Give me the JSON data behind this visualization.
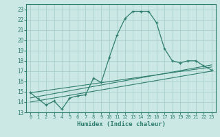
{
  "xlabel": "Humidex (Indice chaleur)",
  "ylabel": "",
  "xlim": [
    -0.5,
    23.5
  ],
  "ylim": [
    13,
    23.5
  ],
  "yticks": [
    13,
    14,
    15,
    16,
    17,
    18,
    19,
    20,
    21,
    22,
    23
  ],
  "xticks": [
    0,
    1,
    2,
    3,
    4,
    5,
    6,
    7,
    8,
    9,
    10,
    11,
    12,
    13,
    14,
    15,
    16,
    17,
    18,
    19,
    20,
    21,
    22,
    23
  ],
  "bg_color": "#cce8e4",
  "grid_color": "#aacfcb",
  "line_color": "#2e7d6e",
  "line1_x": [
    0,
    1,
    2,
    3,
    4,
    5,
    6,
    7,
    8,
    9,
    10,
    11,
    12,
    13,
    14,
    15,
    16,
    17,
    18,
    19,
    20,
    21,
    22,
    23
  ],
  "line1_y": [
    14.9,
    14.3,
    13.7,
    14.1,
    13.3,
    14.4,
    14.6,
    14.7,
    16.3,
    15.9,
    18.3,
    20.5,
    22.1,
    22.8,
    22.8,
    22.8,
    21.7,
    19.2,
    18.0,
    17.8,
    18.0,
    18.0,
    17.5,
    17.1
  ],
  "line2_x": [
    0,
    23
  ],
  "line2_y": [
    14.9,
    17.4
  ],
  "line3_x": [
    0,
    23
  ],
  "line3_y": [
    14.4,
    17.6
  ],
  "line4_x": [
    0,
    23
  ],
  "line4_y": [
    14.0,
    17.0
  ]
}
